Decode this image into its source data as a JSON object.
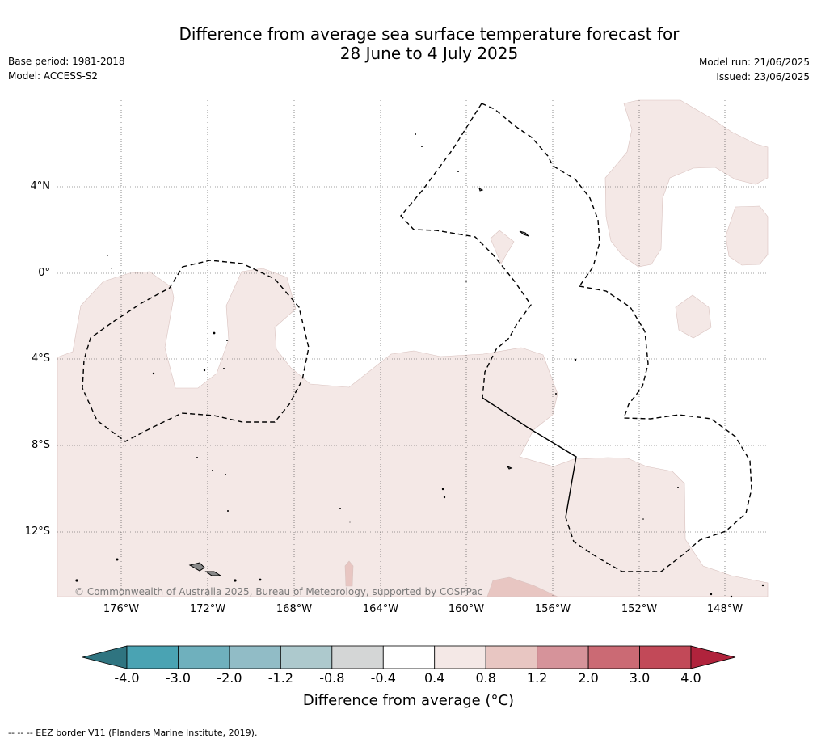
{
  "title": {
    "line1": "Difference from average sea surface temperature forecast for",
    "line2": "28 June to 4 July 2025"
  },
  "meta_left": {
    "base_period": "Base period: 1981-2018",
    "model": "Model: ACCESS-S2"
  },
  "meta_right": {
    "model_run": "Model run: 21/06/2025",
    "issued": "Issued: 23/06/2025"
  },
  "map": {
    "lat_labels": [
      "4°N",
      "0°",
      "4°S",
      "8°S",
      "12°S"
    ],
    "lon_labels": [
      "176°W",
      "172°W",
      "168°W",
      "164°W",
      "160°W",
      "156°W",
      "152°W",
      "148°W"
    ],
    "copyright": "© Commonwealth of Australia 2025, Bureau of Meteorology, supported by COSPPac",
    "anomaly_fill_color": "#f4e8e6",
    "anomaly_fill_warm_color": "#e8c6c2"
  },
  "colorbar": {
    "ticks": [
      "-4.0",
      "-3.0",
      "-2.0",
      "-1.2",
      "-0.8",
      "-0.4",
      "0.4",
      "0.8",
      "1.2",
      "2.0",
      "3.0",
      "4.0"
    ],
    "label": "Difference from average (°C)",
    "colors": [
      "#2f7480",
      "#4aa3b3",
      "#6fb0bd",
      "#91bcc6",
      "#adc9cd",
      "#d4d6d6",
      "#ffffff",
      "#f4e8e6",
      "#e8c6c2",
      "#d6939a",
      "#cb6a74",
      "#c24958",
      "#b0233c"
    ]
  },
  "footnote": "-- -- -- EEZ border V11 (Flanders Marine Institute, 2019)."
}
